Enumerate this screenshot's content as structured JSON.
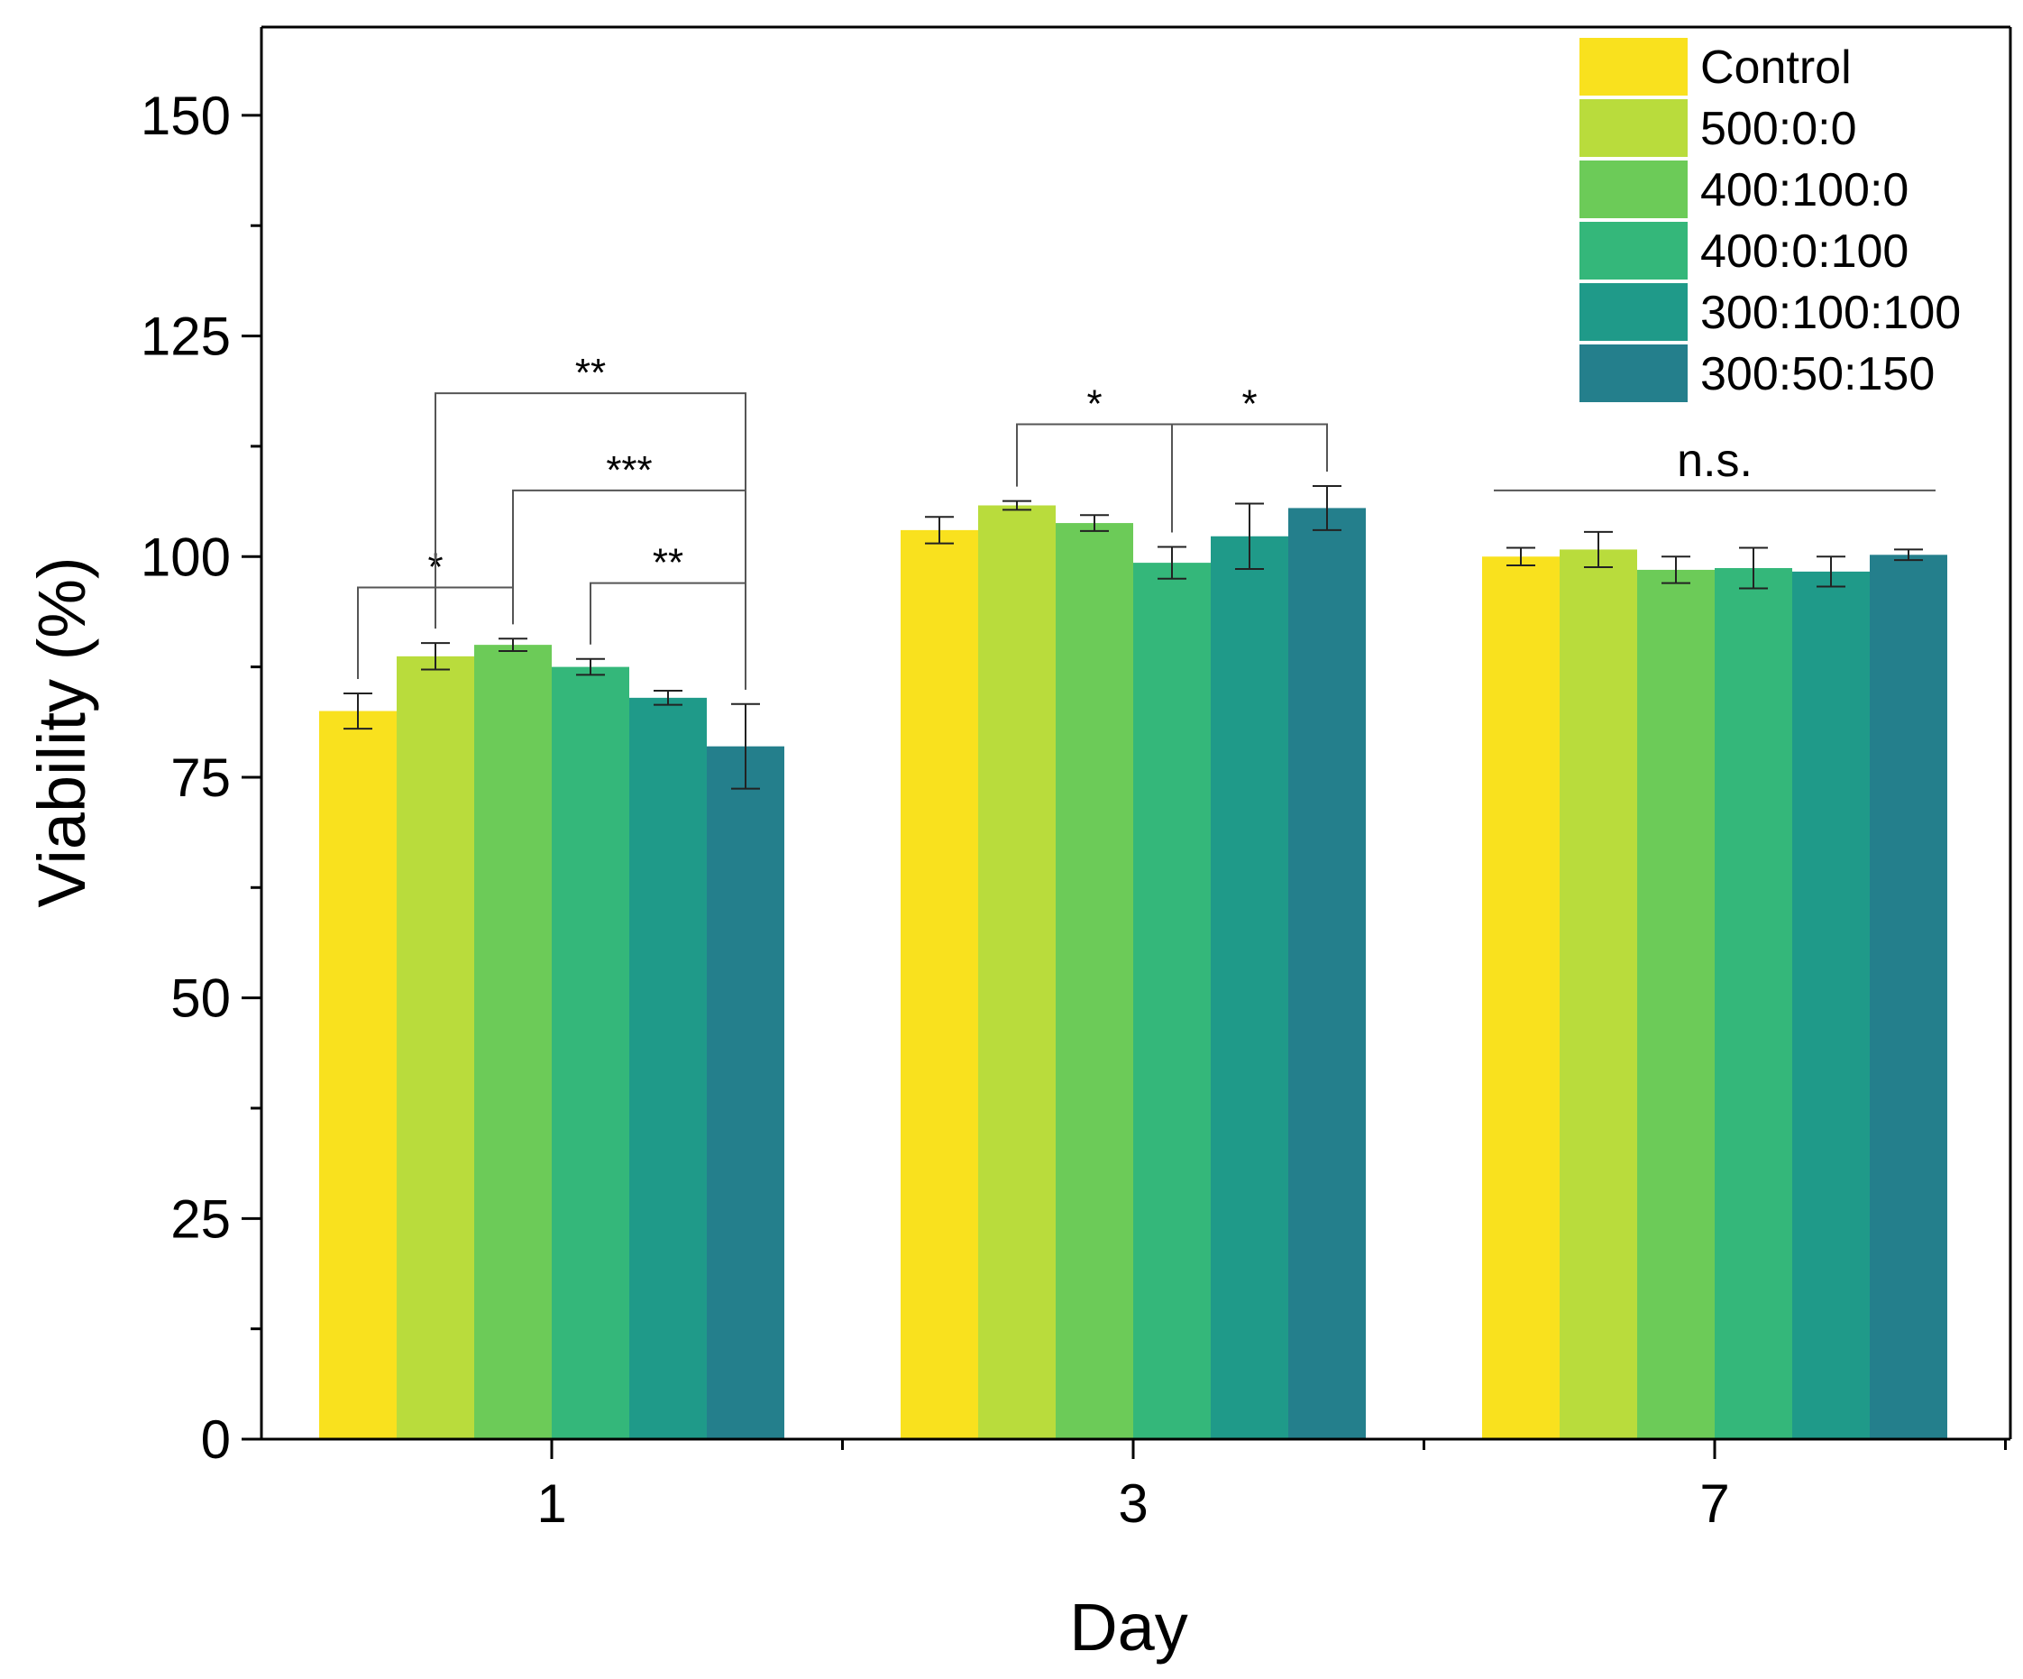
{
  "chart_data": {
    "type": "bar",
    "title": "",
    "xlabel": "Day",
    "ylabel": "Viability (%)",
    "ylim": [
      0,
      160
    ],
    "yticks": [
      0,
      25,
      50,
      75,
      100,
      125,
      150
    ],
    "ytick_labels": [
      "0",
      "25",
      "50",
      "75",
      "100",
      "125",
      "150"
    ],
    "categories": [
      "1",
      "3",
      "7"
    ],
    "legend_position": "top-right",
    "grid": false,
    "series": [
      {
        "name": "Control",
        "color": "#F9E11E",
        "values": [
          82.5,
          103.0,
          100.0
        ],
        "errors": [
          2.0,
          1.5,
          1.0
        ]
      },
      {
        "name": "500:0:0",
        "color": "#B9DC3C",
        "values": [
          88.7,
          105.8,
          100.8
        ],
        "errors": [
          1.5,
          0.5,
          2.0
        ]
      },
      {
        "name": "400:100:0",
        "color": "#6CCB58",
        "values": [
          90.0,
          103.8,
          98.5
        ],
        "errors": [
          0.7,
          0.9,
          1.5
        ]
      },
      {
        "name": "400:0:100",
        "color": "#34B77A",
        "values": [
          87.5,
          99.3,
          98.7
        ],
        "errors": [
          0.9,
          1.8,
          2.3
        ]
      },
      {
        "name": "300:100:100",
        "color": "#1F9A89",
        "values": [
          84.0,
          102.3,
          98.3
        ],
        "errors": [
          0.8,
          3.7,
          1.7
        ]
      },
      {
        "name": "300:50:150",
        "color": "#247F8C",
        "values": [
          78.5,
          105.5,
          100.2
        ],
        "errors": [
          4.8,
          2.5,
          0.6
        ]
      }
    ],
    "annotations": [
      {
        "label": "*",
        "group": 0,
        "from_series": 0,
        "to_series": 2,
        "y": 96.5,
        "type": "bracket"
      },
      {
        "label": "**",
        "group": 0,
        "from_series": 1,
        "to_series": 5,
        "y": 118.5,
        "type": "bracket"
      },
      {
        "label": "***",
        "group": 0,
        "from_series": 2,
        "to_series": 5,
        "y": 107.5,
        "type": "bracket"
      },
      {
        "label": "**",
        "group": 0,
        "from_series": 3,
        "to_series": 5,
        "y": 97.0,
        "type": "bracket"
      },
      {
        "label": "*",
        "group": 1,
        "from_series": 1,
        "to_series": 3,
        "y": 115.0,
        "type": "bracket"
      },
      {
        "label": "*",
        "group": 1,
        "from_series": 3,
        "to_series": 5,
        "y": 115.0,
        "type": "bracket"
      },
      {
        "label": "n.s.",
        "group": 2,
        "from_series": 0,
        "to_series": 5,
        "y": 107.5,
        "type": "line"
      }
    ]
  }
}
